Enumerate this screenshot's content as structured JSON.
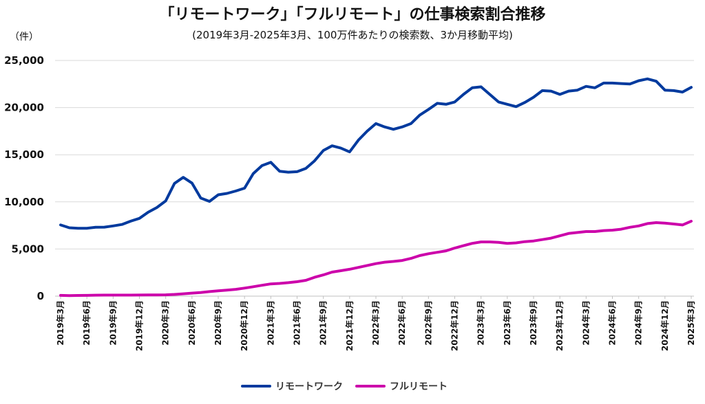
{
  "chart_data": {
    "type": "line",
    "title": "「リモートワーク」「フルリモート」の仕事検索割合推移",
    "subtitle": "(2019年3月-2025年3月、100万件あたりの検索数、3か月移動平均)",
    "ylabel": "（件）",
    "xlabel": "",
    "ylim": [
      0,
      25000
    ],
    "yticks": [
      0,
      5000,
      10000,
      15000,
      20000,
      25000
    ],
    "ytick_labels": [
      "0",
      "5,000",
      "10,000",
      "15,000",
      "20,000",
      "25,000"
    ],
    "grid": true,
    "legend_position": "bottom",
    "x": [
      "2019-03",
      "2019-04",
      "2019-05",
      "2019-06",
      "2019-07",
      "2019-08",
      "2019-09",
      "2019-10",
      "2019-11",
      "2019-12",
      "2020-01",
      "2020-02",
      "2020-03",
      "2020-04",
      "2020-05",
      "2020-06",
      "2020-07",
      "2020-08",
      "2020-09",
      "2020-10",
      "2020-11",
      "2020-12",
      "2021-01",
      "2021-02",
      "2021-03",
      "2021-04",
      "2021-05",
      "2021-06",
      "2021-07",
      "2021-08",
      "2021-09",
      "2021-10",
      "2021-11",
      "2021-12",
      "2022-01",
      "2022-02",
      "2022-03",
      "2022-04",
      "2022-05",
      "2022-06",
      "2022-07",
      "2022-08",
      "2022-09",
      "2022-10",
      "2022-11",
      "2022-12",
      "2023-01",
      "2023-02",
      "2023-03",
      "2023-04",
      "2023-05",
      "2023-06",
      "2023-07",
      "2023-08",
      "2023-09",
      "2023-10",
      "2023-11",
      "2023-12",
      "2024-01",
      "2024-02",
      "2024-03",
      "2024-04",
      "2024-05",
      "2024-06",
      "2024-07",
      "2024-08",
      "2024-09",
      "2024-10",
      "2024-11",
      "2024-12",
      "2025-01",
      "2025-02",
      "2025-03"
    ],
    "x_tick_labels": [
      "2019年3月",
      "2019年6月",
      "2019年9月",
      "2019年12月",
      "2020年3月",
      "2020年6月",
      "2020年9月",
      "2020年12月",
      "2021年3月",
      "2021年6月",
      "2021年9月",
      "2021年12月",
      "2022年3月",
      "2022年6月",
      "2022年9月",
      "2022年12月",
      "2023年3月",
      "2023年6月",
      "2023年9月",
      "2023年12月",
      "2024年3月",
      "2024年6月",
      "2024年9月",
      "2024年12月",
      "2025年3月"
    ],
    "series": [
      {
        "name": "リモートワーク",
        "color": "#003a9e",
        "values": [
          7550,
          7250,
          7200,
          7200,
          7300,
          7320,
          7450,
          7600,
          7950,
          8250,
          8900,
          9400,
          10100,
          11950,
          12600,
          12000,
          10400,
          10050,
          10750,
          10900,
          11150,
          11450,
          13000,
          13850,
          14200,
          13250,
          13150,
          13200,
          13550,
          14350,
          15450,
          15950,
          15700,
          15300,
          16550,
          17500,
          18300,
          17950,
          17700,
          17950,
          18300,
          19200,
          19800,
          20450,
          20350,
          20600,
          21400,
          22100,
          22200,
          21400,
          20600,
          20350,
          20100,
          20550,
          21100,
          21800,
          21750,
          21400,
          21750,
          21850,
          22250,
          22100,
          22600,
          22600,
          22550,
          22500,
          22850,
          23050,
          22800,
          21850,
          21800,
          21650,
          22150
        ]
      },
      {
        "name": "フルリモート",
        "color": "#cc00aa",
        "values": [
          80,
          60,
          70,
          80,
          100,
          110,
          110,
          110,
          110,
          120,
          130,
          130,
          140,
          180,
          250,
          320,
          380,
          480,
          560,
          640,
          720,
          850,
          1000,
          1150,
          1300,
          1350,
          1430,
          1530,
          1680,
          2000,
          2250,
          2550,
          2700,
          2850,
          3050,
          3250,
          3450,
          3600,
          3680,
          3780,
          4000,
          4300,
          4500,
          4650,
          4800,
          5100,
          5350,
          5600,
          5750,
          5750,
          5700,
          5600,
          5650,
          5780,
          5850,
          6000,
          6150,
          6400,
          6650,
          6750,
          6850,
          6850,
          6950,
          7000,
          7100,
          7300,
          7450,
          7700,
          7800,
          7750,
          7650,
          7550,
          7950
        ]
      }
    ]
  }
}
